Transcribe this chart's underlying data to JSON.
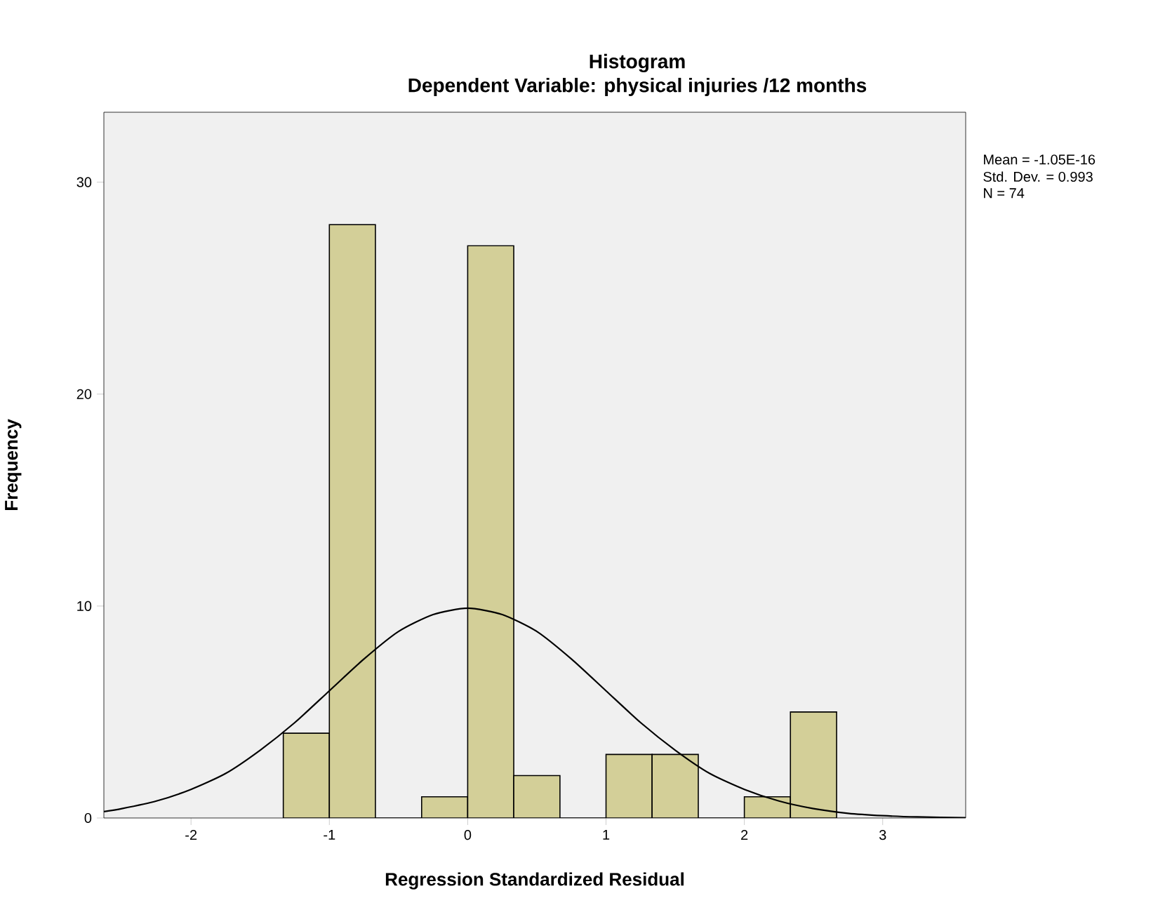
{
  "chart_data": {
    "type": "histogram",
    "title": "Histogram",
    "subtitle": "Dependent Variable: physical injuries /12 months",
    "xlabel": "Regression Standardized Residual",
    "ylabel": "Frequency",
    "bins": [
      -1.333,
      -1.0,
      -0.667,
      -0.333,
      0.0,
      0.333,
      0.667,
      1.0,
      1.333,
      1.667,
      2.0,
      2.333,
      2.667
    ],
    "values": [
      4,
      28,
      0,
      1,
      27,
      2,
      0,
      3,
      3,
      0,
      1,
      5
    ],
    "color": "#d3cf98",
    "series": [
      {
        "type": "line",
        "color": "#000000",
        "x": [
          -2.63,
          -2.5,
          -2.25,
          -2.0,
          -1.75,
          -1.5,
          -1.25,
          -1.0,
          -0.75,
          -0.5,
          -0.25,
          0.0,
          0.25,
          0.5,
          0.75,
          1.0,
          1.25,
          1.5,
          1.75,
          2.0,
          2.25,
          2.5,
          2.75,
          3.0,
          3.25,
          3.6
        ],
        "values": [
          0.3,
          0.44,
          0.8,
          1.35,
          2.1,
          3.2,
          4.5,
          6.0,
          7.5,
          8.8,
          9.6,
          9.9,
          9.6,
          8.8,
          7.5,
          6.0,
          4.5,
          3.2,
          2.1,
          1.35,
          0.8,
          0.44,
          0.22,
          0.11,
          0.05,
          0.01
        ]
      }
    ],
    "xlim": [
      -2.63,
      3.6
    ],
    "ylim": [
      0,
      33.3
    ],
    "xticks": [
      -2,
      -1,
      0,
      1,
      2,
      3
    ],
    "yticks": [
      0,
      10,
      20,
      30
    ],
    "grid": false,
    "marker": "none",
    "line_style": "solid",
    "annotations": [
      "Mean = -1.05E-16",
      "Std. Dev. = 0.993",
      "N = 74"
    ]
  }
}
